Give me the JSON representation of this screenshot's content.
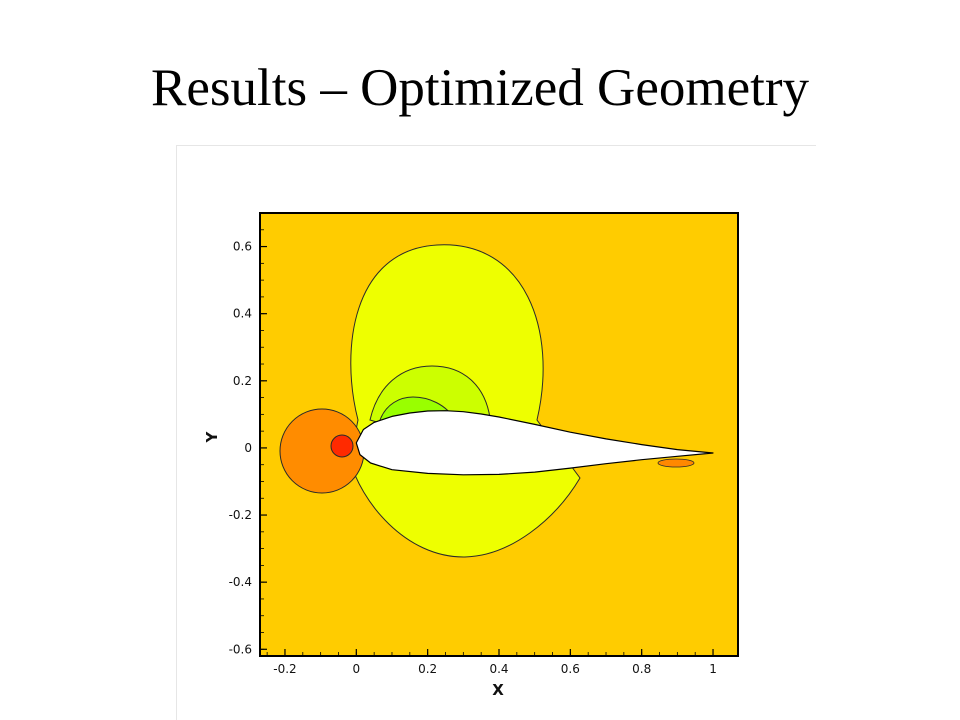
{
  "slide": {
    "title": "Results – Optimized Geometry"
  },
  "colors": {
    "background_field": "#ffcc00",
    "outer_lobe": "#eeff00",
    "mid_lobe": "#ccff00",
    "inner_lobe": "#99ff00",
    "leading_edge_outer": "#ff8c00",
    "leading_edge_inner": "#ff2a00",
    "trailing_edge_spot": "#ff8800",
    "airfoil": "#ffffff",
    "contour_line": "#2a2a2a"
  },
  "chart_data": {
    "type": "contour",
    "xlabel": "X",
    "ylabel": "Y",
    "xlim": [
      -0.27,
      1.07
    ],
    "ylim": [
      -0.62,
      0.7
    ],
    "x_ticks": [
      -0.2,
      0,
      0.2,
      0.4,
      0.6,
      0.8,
      1
    ],
    "x_tick_labels": [
      "-0.2",
      "0",
      "0.2",
      "0.4",
      "0.6",
      "0.8",
      "1"
    ],
    "y_ticks": [
      -0.6,
      -0.4,
      -0.2,
      0,
      0.2,
      0.4,
      0.6
    ],
    "y_tick_labels": [
      "-0.6",
      "-0.4",
      "-0.2",
      "0",
      "0.2",
      "0.4",
      "0.6"
    ],
    "grid": false,
    "legend": "none",
    "contour_levels": [
      {
        "name": "outer_lobe",
        "color": "#eeff00"
      },
      {
        "name": "mid_lobe",
        "color": "#ccff00"
      },
      {
        "name": "inner_lobe",
        "color": "#99ff00"
      },
      {
        "name": "leading_edge_outer",
        "color": "#ff8c00"
      },
      {
        "name": "leading_edge_inner",
        "color": "#ff2a00"
      },
      {
        "name": "trailing_edge_spot",
        "color": "#ff8800"
      }
    ],
    "airfoil": {
      "chord_start": 0.0,
      "chord_end": 1.0,
      "upper_surface": [
        [
          0.0,
          0.015
        ],
        [
          0.02,
          0.055
        ],
        [
          0.05,
          0.076
        ],
        [
          0.1,
          0.094
        ],
        [
          0.15,
          0.104
        ],
        [
          0.2,
          0.11
        ],
        [
          0.25,
          0.111
        ],
        [
          0.3,
          0.108
        ],
        [
          0.35,
          0.101
        ],
        [
          0.4,
          0.092
        ],
        [
          0.5,
          0.07
        ],
        [
          0.6,
          0.047
        ],
        [
          0.7,
          0.027
        ],
        [
          0.8,
          0.01
        ],
        [
          0.9,
          -0.005
        ],
        [
          1.0,
          -0.015
        ]
      ],
      "lower_surface": [
        [
          0.0,
          0.015
        ],
        [
          0.01,
          -0.02
        ],
        [
          0.04,
          -0.045
        ],
        [
          0.1,
          -0.065
        ],
        [
          0.2,
          -0.076
        ],
        [
          0.3,
          -0.08
        ],
        [
          0.4,
          -0.079
        ],
        [
          0.5,
          -0.072
        ],
        [
          0.6,
          -0.06
        ],
        [
          0.7,
          -0.047
        ],
        [
          0.8,
          -0.035
        ],
        [
          0.9,
          -0.025
        ],
        [
          1.0,
          -0.015
        ]
      ]
    }
  }
}
